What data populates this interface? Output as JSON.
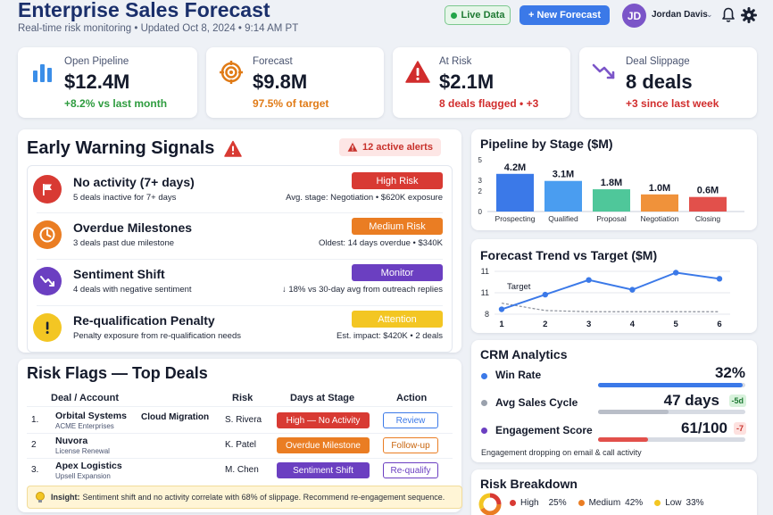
{
  "header": {
    "title": "Enterprise Sales Forecast",
    "subtitle": "Real-time risk monitoring • Updated Oct 8, 2024 • 9:14 AM PT",
    "live_label": "Live Data",
    "new_forecast_label": "+ New Forecast",
    "user_initials": "JD",
    "user_name": "Jordan Davis"
  },
  "kpis": [
    {
      "label": "Open Pipeline",
      "value": "$12.4M",
      "delta": "+8.2% vs last month",
      "icon": "bar-chart-icon",
      "color": "#2e9c3f"
    },
    {
      "label": "Forecast",
      "value": "$9.8M",
      "delta": "97.5% of target",
      "icon": "target-icon",
      "color": "#e07b17"
    },
    {
      "label": "At Risk",
      "value": "$2.1M",
      "delta": "8 deals flagged • +3",
      "icon": "warning-icon",
      "color": "#d12d2d"
    },
    {
      "label": "Deal Slippage",
      "value": "8 deals",
      "delta": "+3 since last week",
      "icon": "trend-down-icon",
      "color": "#d12d2d"
    }
  ],
  "warnings": {
    "title": "Early Warning Signals",
    "alert_count": "12 active alerts",
    "signals": [
      {
        "title": "No activity (7+ days)",
        "sub": "5 deals inactive for 7+ days",
        "badge": "High Risk",
        "badge_color": "#d83a33",
        "detail": "Avg. stage: Negotiation • $620K exposure",
        "icon": "flag-icon",
        "icon_color": "#d83a33"
      },
      {
        "title": "Overdue Milestones",
        "sub": "3 deals past due milestone",
        "badge": "Medium Risk",
        "badge_color": "#ea7d23",
        "detail": "Oldest: 14 days overdue • $340K",
        "icon": "clock-icon",
        "icon_color": "#ea7d23"
      },
      {
        "title": "Sentiment Shift",
        "sub": "4 deals with negative sentiment",
        "badge": "Monitor",
        "badge_color": "#6b3fc1",
        "detail": "↓ 18% vs 30-day avg from outreach replies",
        "icon": "trend-down-icon",
        "icon_color": "#6b3fc1"
      },
      {
        "title": "Re-qualification Penalty",
        "sub": "Penalty exposure from re-qualification needs",
        "badge": "Attention",
        "badge_color": "#f3c623",
        "detail": "Est. impact: $420K • 2 deals",
        "icon": "exclamation-icon",
        "icon_color": "#f3c623"
      }
    ]
  },
  "risk_flags": {
    "title": "Risk Flags — Top Deals",
    "columns": [
      "Deal / Account",
      "Risk",
      "Days at Stage",
      "Action"
    ],
    "rows": [
      {
        "num": "1.",
        "deal": "Orbital Systems",
        "account": "ACME Enterprises",
        "type": "Cloud Migration",
        "owner": "S. Rivera",
        "risk": "High — No Activity",
        "risk_color": "#d83a33",
        "action": "Review",
        "action_color": "#3b79e8"
      },
      {
        "num": "2",
        "deal": "Nuvora",
        "account": "License Renewal",
        "type": "",
        "owner": "K. Patel",
        "risk": "Overdue Milestone",
        "risk_color": "#ea7d23",
        "action": "Follow-up",
        "action_color": "#ea7d23"
      },
      {
        "num": "3.",
        "deal": "Apex Logistics",
        "account": "Upsell Expansion",
        "type": "",
        "owner": "M. Chen",
        "risk": "Sentiment Shift",
        "risk_color": "#6b3fc1",
        "action": "Re-qualify",
        "action_color": "#6b3fc1"
      }
    ],
    "insight_label": "Insight:",
    "insight_text": "Sentiment shift and no activity correlate with 68% of slippage. Recommend re-engagement sequence."
  },
  "pipeline": {
    "title": "Pipeline by Stage ($M)",
    "chart_data": {
      "type": "bar",
      "categories": [
        "Prospecting",
        "Qualified",
        "Proposal",
        "Negotiation",
        "Closing"
      ],
      "values": [
        4.2,
        3.1,
        1.8,
        1.0,
        0.6
      ],
      "data_labels": [
        "4.2M",
        "3.1M",
        "1.8M",
        "1.0M",
        "0.6M"
      ],
      "colors": [
        "#3b79e8",
        "#4a9df0",
        "#4fc79a",
        "#f0923a",
        "#e2504b"
      ],
      "y_ticks": [
        "0",
        "2",
        "3",
        "5"
      ]
    }
  },
  "forecast_trend": {
    "title": "Forecast Trend vs Target ($M)",
    "chart_data": {
      "type": "line",
      "x": [
        1,
        2,
        3,
        4,
        5,
        6
      ],
      "x_ticks": [
        "1",
        "2",
        "3",
        "4",
        "5",
        "6"
      ],
      "y_ticks": [
        "8",
        "11",
        "11"
      ],
      "series": [
        {
          "values": [
            8.2,
            9.4,
            10.6,
            9.8,
            11.2,
            10.7
          ],
          "color": "#3b79e8"
        },
        {
          "name": "Target",
          "values": [
            8.7,
            8.1,
            8.0,
            8.0,
            8.0,
            8.0
          ],
          "color": "#6b7280"
        }
      ],
      "annotation": "Target"
    }
  },
  "crm": {
    "title": "CRM Analytics",
    "metrics": [
      {
        "label": "Win Rate",
        "value": "32%",
        "chip": "",
        "dot_color": "#3b79e8",
        "bar_color": "#3b79e8",
        "fill": 0.98
      },
      {
        "label": "Avg Sales Cycle",
        "value": "47 days",
        "chip": "-5d",
        "chip_bg": "#d8f2dc",
        "chip_color": "#1f7a34",
        "dot_color": "#9aa1ad",
        "bar_color": "#b9bec8",
        "fill": 0.48
      },
      {
        "label": "Engagement Score",
        "value": "61/100",
        "chip": "-7",
        "chip_bg": "#fde1df",
        "chip_color": "#c8322c",
        "dot_color": "#6b3fc1",
        "bar_color": "#e2504b",
        "fill": 0.34
      }
    ],
    "note": "Engagement dropping on email & call activity"
  },
  "risk_breakdown": {
    "title": "Risk Breakdown",
    "chart_data": {
      "type": "pie",
      "labels": [
        "High",
        "Medium",
        "Low"
      ],
      "values": [
        25,
        42,
        33
      ],
      "display": [
        "25%",
        "42%",
        "33%"
      ],
      "colors": [
        "#d83a33",
        "#ea7d23",
        "#f3c623"
      ]
    }
  }
}
